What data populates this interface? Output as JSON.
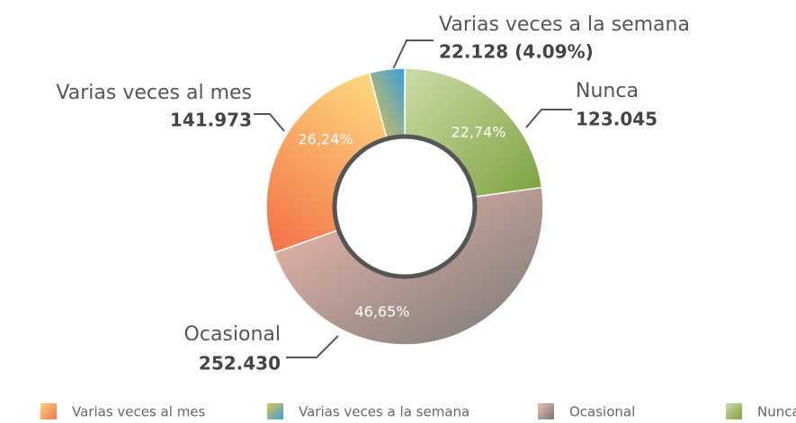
{
  "chart_data": {
    "type": "donut",
    "categories": [
      "Nunca",
      "Ocasional",
      "Varias veces al mes",
      "Varias veces a la semana"
    ],
    "values": [
      123045,
      252430,
      141973,
      22128
    ],
    "value_labels": [
      "123.045",
      "252.430",
      "141.973",
      "22.128 (4.09%)"
    ],
    "percent_labels": [
      "22,74%",
      "46,65%",
      "26,24%"
    ],
    "colors": [
      [
        "#cddca8",
        "#7ba23f"
      ],
      [
        "#f3bcae",
        "#777777"
      ],
      [
        "#fdd47c",
        "#f4764a"
      ],
      [
        "#e8c048",
        "#36a0dc"
      ]
    ],
    "legend": [
      "Varias veces al mes",
      "Varias veces a la semana",
      "Ocasional",
      "Nunca"
    ],
    "legend_colors": [
      [
        "#fdd47c",
        "#f4764a"
      ],
      [
        "#e8c048",
        "#36a0dc"
      ],
      [
        "#f3bcae",
        "#777777"
      ],
      [
        "#cddca8",
        "#7ba23f"
      ]
    ]
  }
}
